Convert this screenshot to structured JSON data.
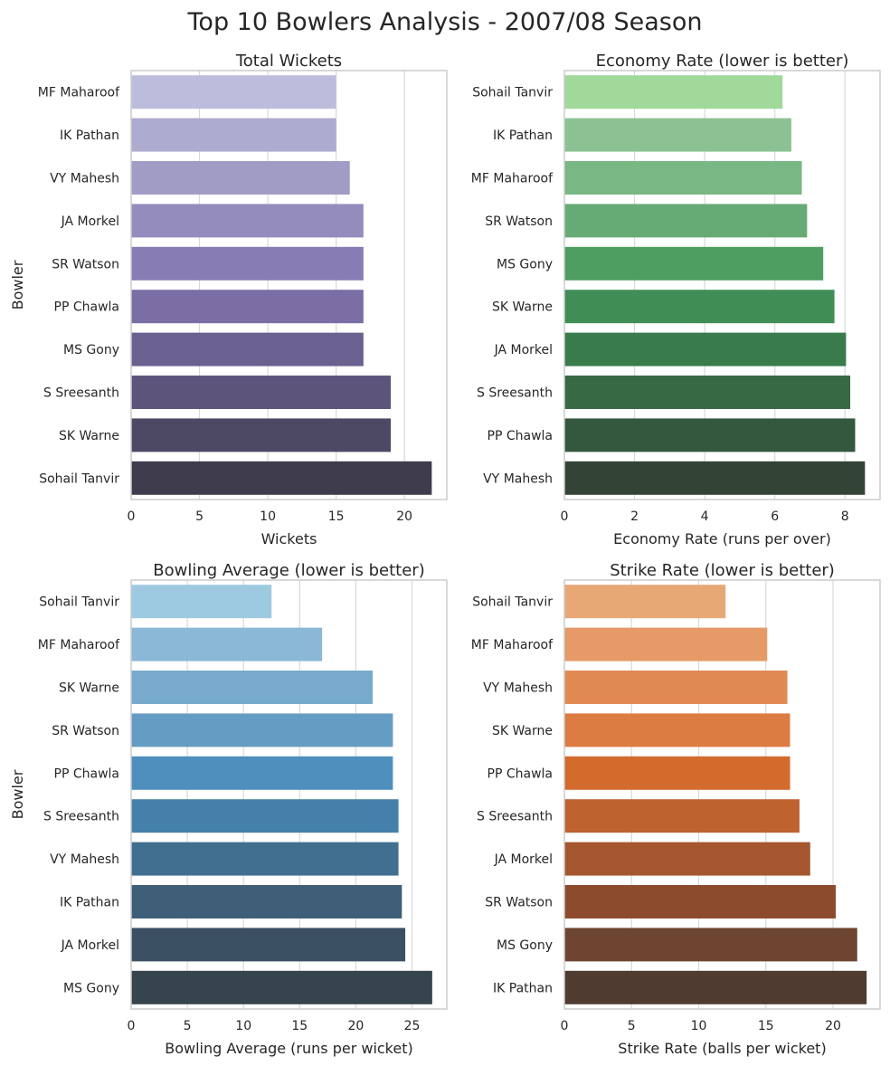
{
  "figure_title": "Top 10 Bowlers Analysis - 2007/08 Season",
  "chart_data": [
    {
      "type": "bar",
      "orientation": "horizontal",
      "title": "Total Wickets",
      "xlabel": "Wickets",
      "ylabel": "Bowler",
      "categories": [
        "MF Maharoof",
        "IK Pathan",
        "VY Mahesh",
        "JA Morkel",
        "SR Watson",
        "PP Chawla",
        "MS Gony",
        "S Sreesanth",
        "SK Warne",
        "Sohail Tanvir"
      ],
      "values": [
        15,
        15,
        16,
        17,
        17,
        17,
        17,
        19,
        19,
        22
      ],
      "xlim": [
        0,
        23.1
      ],
      "xticks": [
        0,
        5,
        10,
        15,
        20
      ],
      "colors": [
        "#bcbddc",
        "#adabd0",
        "#a09cc6",
        "#948cbd",
        "#877cb3",
        "#7a6ea5",
        "#6b6190",
        "#5c547a",
        "#4d4864",
        "#3f3c4d"
      ],
      "grid": "x"
    },
    {
      "type": "bar",
      "orientation": "horizontal",
      "title": "Economy Rate (lower is better)",
      "xlabel": "Economy Rate (runs per over)",
      "ylabel": "",
      "categories": [
        "Sohail Tanvir",
        "IK Pathan",
        "MF Maharoof",
        "SR Watson",
        "MS Gony",
        "SK Warne",
        "JA Morkel",
        "S Sreesanth",
        "PP Chawla",
        "VY Mahesh"
      ],
      "values": [
        6.22,
        6.47,
        6.77,
        6.92,
        7.38,
        7.7,
        8.03,
        8.15,
        8.29,
        8.57
      ],
      "xlim": [
        0,
        9.0
      ],
      "xticks": [
        0,
        2,
        4,
        6,
        8
      ],
      "colors": [
        "#a1d99b",
        "#8cc293",
        "#79b784",
        "#66ab75",
        "#4e9d61",
        "#408e56",
        "#3a7b4c",
        "#366944",
        "#34583d",
        "#334436"
      ],
      "grid": "x"
    },
    {
      "type": "bar",
      "orientation": "horizontal",
      "title": "Bowling Average (lower is better)",
      "xlabel": "Bowling Average (runs per wicket)",
      "ylabel": "Bowler",
      "categories": [
        "Sohail Tanvir",
        "MF Maharoof",
        "SK Warne",
        "SR Watson",
        "PP Chawla",
        "S Sreesanth",
        "VY Mahesh",
        "IK Pathan",
        "JA Morkel",
        "MS Gony"
      ],
      "values": [
        12.5,
        17.0,
        21.5,
        23.3,
        23.3,
        23.8,
        23.8,
        24.1,
        24.4,
        26.8
      ],
      "xlim": [
        0,
        28.1
      ],
      "xticks": [
        0,
        5,
        10,
        15,
        20,
        25
      ],
      "colors": [
        "#9ecae1",
        "#8ab8d6",
        "#77aacd",
        "#659cc3",
        "#4f8fbe",
        "#4580aa",
        "#416f90",
        "#3e5f77",
        "#3b5062",
        "#36444d"
      ],
      "grid": "x"
    },
    {
      "type": "bar",
      "orientation": "horizontal",
      "title": "Strike Rate (lower is better)",
      "xlabel": "Strike Rate (balls per wicket)",
      "ylabel": "",
      "categories": [
        "Sohail Tanvir",
        "MF Maharoof",
        "VY Mahesh",
        "SK Warne",
        "PP Chawla",
        "S Sreesanth",
        "JA Morkel",
        "SR Watson",
        "MS Gony",
        "IK Pathan"
      ],
      "values": [
        12.0,
        15.1,
        16.6,
        16.8,
        16.8,
        17.5,
        18.3,
        20.2,
        21.8,
        22.5
      ],
      "xlim": [
        0,
        23.5
      ],
      "xticks": [
        0,
        5,
        10,
        15,
        20
      ],
      "colors": [
        "#e8a876",
        "#e59a67",
        "#e08a52",
        "#dc7c42",
        "#d36b2c",
        "#be6230",
        "#a4562f",
        "#8c4b2d",
        "#6d4530",
        "#4f3b30"
      ],
      "grid": "x"
    }
  ]
}
